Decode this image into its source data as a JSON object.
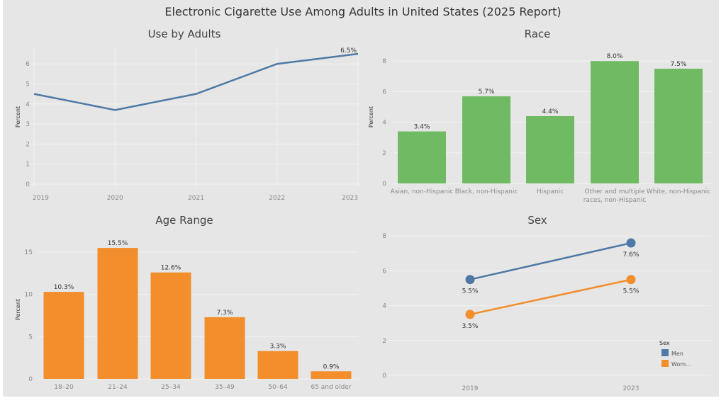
{
  "title": "Electronic Cigarette Use Among Adults in United States (2025 Report)",
  "colors": {
    "blue": "#4e79a7",
    "green": "#6fba63",
    "orange": "#f28e2b",
    "panel": "#e6e6e6",
    "grid": "#f2f2f2"
  },
  "chart_data": [
    {
      "type": "line",
      "title": "Use by Adults",
      "ylabel": "Percent",
      "xlabel": "",
      "x": [
        "2019",
        "2020",
        "2021",
        "2022",
        "2023"
      ],
      "values": [
        4.5,
        3.7,
        4.5,
        6.0,
        6.5
      ],
      "data_labels": [
        "",
        "",
        "",
        "",
        "6.5%"
      ],
      "yticks": [
        "0",
        "1",
        "2",
        "3",
        "4",
        "5",
        "6"
      ],
      "ylim": [
        0,
        6.8
      ],
      "grid": true,
      "color": "#4e79a7"
    },
    {
      "type": "bar",
      "title": "Race",
      "ylabel": "Percent",
      "categories": [
        [
          "Asian, non-Hispanic"
        ],
        [
          "Black, non-Hispanic"
        ],
        [
          "Hispanic"
        ],
        [
          "Other and multiple",
          "races, non-Hispanic"
        ],
        [
          "White, non-Hispanic"
        ]
      ],
      "values": [
        3.4,
        5.7,
        4.4,
        8.0,
        7.5
      ],
      "data_labels": [
        "3.4%",
        "5.7%",
        "4.4%",
        "8.0%",
        "7.5%"
      ],
      "yticks": [
        "0",
        "2",
        "4",
        "6",
        "8"
      ],
      "ylim": [
        0,
        8.8
      ],
      "grid": true,
      "color": "#6fba63"
    },
    {
      "type": "bar",
      "title": "Age Range",
      "ylabel": "Percent",
      "categories": [
        "18–20",
        "21–24",
        "25–34",
        "35–49",
        "50–64",
        "65 and older"
      ],
      "values": [
        10.3,
        15.5,
        12.6,
        7.3,
        3.3,
        0.9
      ],
      "data_labels": [
        "10.3%",
        "15.5%",
        "12.6%",
        "7.3%",
        "3.3%",
        "0.9%"
      ],
      "yticks": [
        "0",
        "5",
        "10",
        "15"
      ],
      "ylim": [
        0,
        17
      ],
      "grid": true,
      "color": "#f28e2b"
    },
    {
      "type": "line",
      "title": "Sex",
      "x": [
        "2019",
        "2023"
      ],
      "series": [
        {
          "name": "Men",
          "values": [
            5.5,
            7.6
          ],
          "data_labels": [
            "5.5%",
            "7.6%"
          ],
          "color": "#4e79a7"
        },
        {
          "name": "Wom...",
          "values": [
            3.5,
            5.5
          ],
          "data_labels": [
            "3.5%",
            "5.5%"
          ],
          "color": "#f28e2b"
        }
      ],
      "yticks": [
        "0",
        "2",
        "4",
        "6",
        "8"
      ],
      "ylim": [
        0,
        8.4
      ],
      "legend_title": "Sex",
      "legend": "bottom-right",
      "grid": true
    }
  ]
}
